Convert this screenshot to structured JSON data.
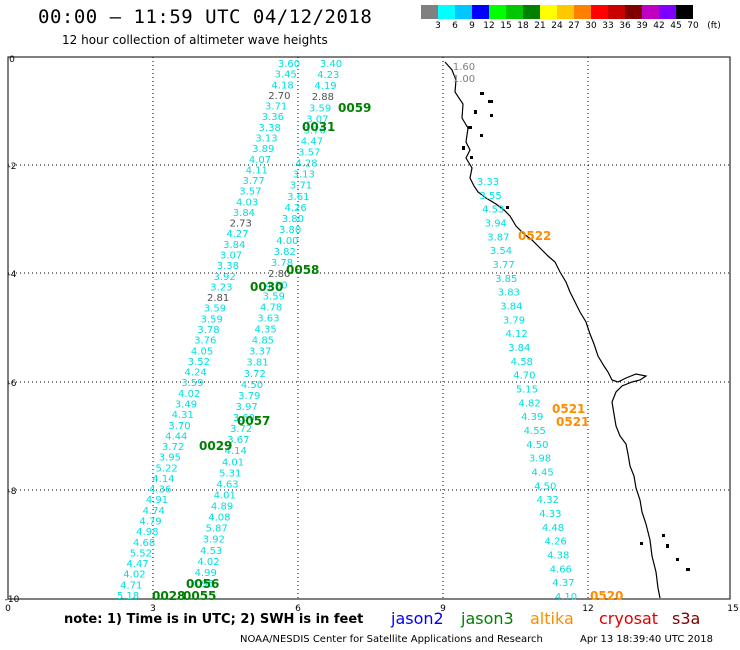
{
  "header": {
    "title": "00:00 – 11:59 UTC 04/12/2018",
    "subtitle": "12 hour collection of altimeter wave heights"
  },
  "colorbar": {
    "colors": [
      "#808080",
      "#00ffff",
      "#00c8ff",
      "#0000ff",
      "#00ff00",
      "#00c800",
      "#008000",
      "#ffff00",
      "#ffc800",
      "#ff8000",
      "#ff0000",
      "#c80000",
      "#800000",
      "#c000c0",
      "#8000ff",
      "#000000"
    ],
    "labels": [
      "3",
      "6",
      "9",
      "12",
      "15",
      "18",
      "21",
      "24",
      "27",
      "30",
      "33",
      "36",
      "39",
      "42",
      "45",
      "70",
      "(ft)"
    ]
  },
  "axes": {
    "x_ticks": [
      "0",
      "3",
      "6",
      "9",
      "12",
      "15"
    ],
    "y_ticks": [
      "0",
      "-2",
      "-4",
      "-6",
      "-8",
      "-10"
    ]
  },
  "track_a": {
    "color": "#00e0e0",
    "values": [
      "3.60",
      "3.45",
      "4.18",
      "2.70",
      "3.71",
      "3.36",
      "3.38",
      "3.13",
      "3.89",
      "4.07",
      "4.11",
      "3.77",
      "3.57",
      "4.03",
      "3.84",
      "2.73",
      "4.27",
      "3.84",
      "3.07",
      "3.38",
      "3.92",
      "3.23",
      "2.81",
      "3.59",
      "3.59",
      "3.78",
      "3.76",
      "4.05",
      "3.52",
      "4.24",
      "3.59",
      "4.02",
      "3.49",
      "4.31",
      "3.70",
      "4.44",
      "3.72",
      "3.95",
      "5.22",
      "4.14",
      "4.36",
      "4.91",
      "4.74",
      "4.79",
      "4.98",
      "4.68",
      "5.52",
      "4.47",
      "4.02",
      "4.71",
      "5.18"
    ]
  },
  "track_b": {
    "color": "#00e0e0",
    "values": [
      "3.40",
      "4.23",
      "4.19",
      "2.88",
      "3.59",
      "3.07",
      "3.76",
      "4.47",
      "3.57",
      "4.28",
      "3.13",
      "3.71",
      "3.61",
      "4.26",
      "3.80",
      "3.80",
      "4.00",
      "3.82",
      "3.78",
      "2.80",
      "4.20",
      "3.59",
      "4.78",
      "3.63",
      "4.35",
      "4.85",
      "3.37",
      "3.81",
      "3.72",
      "4.50",
      "3.79",
      "3.97",
      "3.60",
      "3.72",
      "3.67",
      "4.14",
      "4.01",
      "5.31",
      "4.63",
      "4.01",
      "4.89",
      "4.08",
      "5.87",
      "3.92",
      "4.53",
      "4.02",
      "4.99",
      "4.95"
    ]
  },
  "track_c": {
    "color": "#00e0e0",
    "values": [
      "3.33",
      "3.55",
      "4.53",
      "3.94",
      "3.87",
      "3.54",
      "3.77",
      "3.85",
      "3.83",
      "3.84",
      "3.79",
      "4.12",
      "3.84",
      "4.58",
      "4.70",
      "5.15",
      "4.82",
      "4.39",
      "4.55",
      "4.50",
      "3.98",
      "4.45",
      "4.50",
      "4.32",
      "4.33",
      "4.48",
      "4.26",
      "4.38",
      "4.66",
      "4.37",
      "4.10"
    ]
  },
  "gray_labels": [
    "1.60",
    "1.00"
  ],
  "time_labels": [
    {
      "text": "0059",
      "color": "#008000"
    },
    {
      "text": "0031",
      "color": "#008000"
    },
    {
      "text": "0522",
      "color": "#ff8c00"
    },
    {
      "text": "0058",
      "color": "#008000"
    },
    {
      "text": "0030",
      "color": "#008000"
    },
    {
      "text": "0521",
      "color": "#ff8c00"
    },
    {
      "text": "0521",
      "color": "#ff8c00"
    },
    {
      "text": "0057",
      "color": "#008000"
    },
    {
      "text": "0029",
      "color": "#008000"
    },
    {
      "text": "0056",
      "color": "#008000"
    },
    {
      "text": "0028",
      "color": "#008000"
    },
    {
      "text": "0055",
      "color": "#008000"
    },
    {
      "text": "0520",
      "color": "#ff8c00"
    }
  ],
  "note": "note: 1) Time is in UTC; 2) SWH is in feet",
  "satellites": [
    {
      "name": "jason2",
      "color": "#0000ff"
    },
    {
      "name": "jason3",
      "color": "#008000"
    },
    {
      "name": "altika",
      "color": "#ff8c00"
    },
    {
      "name": "cryosat",
      "color": "#e00000"
    },
    {
      "name": "s3a",
      "color": "#800000"
    }
  ],
  "footer": {
    "agency": "NOAA/NESDIS Center for Satellite Applications and Research",
    "timestamp": "Apr 13 18:39:40 UTC 2018"
  }
}
